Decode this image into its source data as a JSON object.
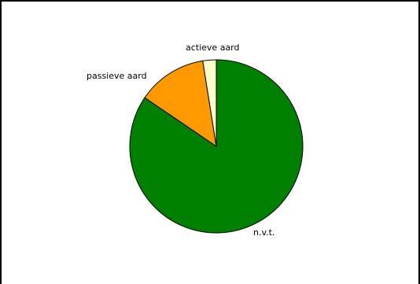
{
  "chart_data": {
    "type": "pie",
    "title": "",
    "start_angle_deg": 0,
    "direction": "clockwise",
    "slices": [
      {
        "label": "n.v.t.",
        "value": 84.5,
        "color": "#008000"
      },
      {
        "label": "passieve aard",
        "value": 13.0,
        "color": "#FF9900"
      },
      {
        "label": "actieve aard",
        "value": 2.5,
        "color": "#FFFFCC"
      }
    ],
    "legend": "none",
    "stroke_color": "#000000"
  }
}
